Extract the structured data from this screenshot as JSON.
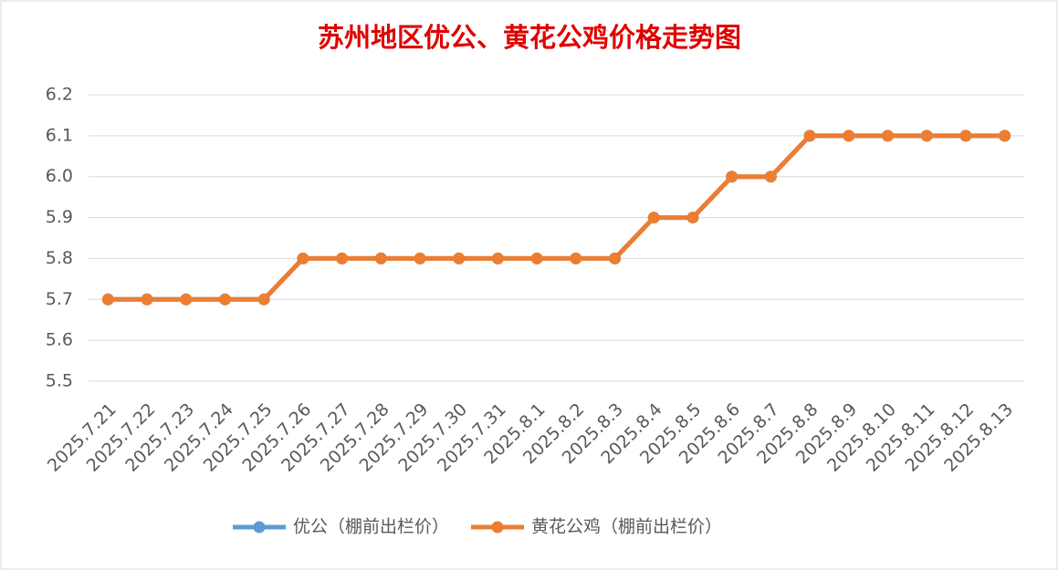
{
  "chart_data": {
    "type": "line",
    "title": "苏州地区优公、黄花公鸡价格走势图",
    "categories": [
      "2025.7.21",
      "2025.7.22",
      "2025.7.23",
      "2025.7.24",
      "2025.7.25",
      "2025.7.26",
      "2025.7.27",
      "2025.7.28",
      "2025.7.29",
      "2025.7.30",
      "2025.7.31",
      "2025.8.1",
      "2025.8.2",
      "2025.8.3",
      "2025.8.4",
      "2025.8.5",
      "2025.8.6",
      "2025.8.7",
      "2025.8.8",
      "2025.8.9",
      "2025.8.10",
      "2025.8.11",
      "2025.8.12",
      "2025.8.13"
    ],
    "series": [
      {
        "name": "优公（棚前出栏价）",
        "color": "#5b9bd5",
        "values": [
          5.7,
          5.7,
          5.7,
          5.7,
          5.7,
          5.8,
          5.8,
          5.8,
          5.8,
          5.8,
          5.8,
          5.8,
          5.8,
          5.8,
          5.9,
          5.9,
          6.0,
          6.0,
          6.1,
          6.1,
          6.1,
          6.1,
          6.1,
          6.1
        ]
      },
      {
        "name": "黄花公鸡（棚前出栏价）",
        "color": "#ed7d31",
        "values": [
          5.7,
          5.7,
          5.7,
          5.7,
          5.7,
          5.8,
          5.8,
          5.8,
          5.8,
          5.8,
          5.8,
          5.8,
          5.8,
          5.8,
          5.9,
          5.9,
          6.0,
          6.0,
          6.1,
          6.1,
          6.1,
          6.1,
          6.1,
          6.1
        ]
      }
    ],
    "ylim": [
      5.5,
      6.2
    ],
    "yticks": [
      {
        "value": 5.5,
        "label": "5.5"
      },
      {
        "value": 5.6,
        "label": "5.6"
      },
      {
        "value": 5.7,
        "label": "5.7"
      },
      {
        "value": 5.8,
        "label": "5.8"
      },
      {
        "value": 5.9,
        "label": "5.9"
      },
      {
        "value": 6.0,
        "label": "6.0"
      },
      {
        "value": 6.1,
        "label": "6.1"
      },
      {
        "value": 6.2,
        "label": "6.2"
      }
    ],
    "grid": true,
    "legend": "bottom"
  }
}
